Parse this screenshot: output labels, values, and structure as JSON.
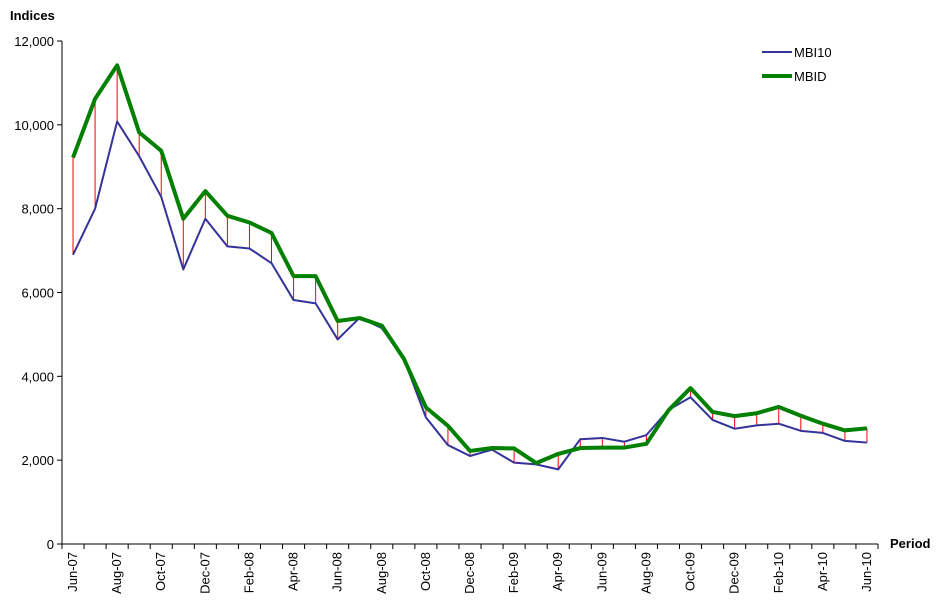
{
  "chart_data": {
    "type": "line",
    "ylabel": "Indices",
    "xlabel": "Period",
    "ylim": [
      0,
      12000
    ],
    "yticks": [
      0,
      2000,
      4000,
      6000,
      8000,
      10000,
      12000
    ],
    "ytick_labels": [
      "0",
      "2,000",
      "4,000",
      "6,000",
      "8,000",
      "10,000",
      "12,000"
    ],
    "x": [
      "Jun-07",
      "Jul-07",
      "Aug-07",
      "Sep-07",
      "Oct-07",
      "Nov-07",
      "Dec-07",
      "Jan-08",
      "Feb-08",
      "Mar-08",
      "Apr-08",
      "May-08",
      "Jun-08",
      "Jul-08",
      "Aug-08",
      "Sep-08",
      "Oct-08",
      "Nov-08",
      "Dec-08",
      "Jan-09",
      "Feb-09",
      "Mar-09",
      "Apr-09",
      "May-09",
      "Jun-09",
      "Jul-09",
      "Aug-09",
      "Sep-09",
      "Oct-09",
      "Nov-09",
      "Dec-09",
      "Jan-10",
      "Feb-10",
      "Mar-10",
      "Apr-10",
      "May-10",
      "Jun-10"
    ],
    "x_tick_labels": [
      "Jun-07",
      "Aug-07",
      "Oct-07",
      "Dec-07",
      "Feb-08",
      "Apr-08",
      "Jun-08",
      "Aug-08",
      "Oct-08",
      "Dec-08",
      "Feb-09",
      "Apr-09",
      "Jun-09",
      "Aug-09",
      "Oct-09",
      "Dec-09",
      "Feb-10",
      "Apr-10",
      "Jun-10"
    ],
    "series": [
      {
        "name": "MBI10",
        "color": "#333399",
        "values": [
          6900,
          8000,
          10080,
          9250,
          8280,
          6550,
          7760,
          7100,
          7050,
          6700,
          5820,
          5740,
          4880,
          5400,
          5150,
          4420,
          3020,
          2360,
          2100,
          2250,
          1940,
          1900,
          1780,
          2500,
          2530,
          2440,
          2600,
          3200,
          3500,
          2960,
          2750,
          2830,
          2870,
          2700,
          2650,
          2460,
          2420
        ]
      },
      {
        "name": "MBID",
        "color": "#008000",
        "values": [
          9220,
          10620,
          11420,
          9820,
          9380,
          7760,
          8420,
          7830,
          7670,
          7420,
          6390,
          6390,
          5320,
          5390,
          5210,
          4420,
          3260,
          2820,
          2220,
          2290,
          2280,
          1930,
          2150,
          2290,
          2300,
          2300,
          2390,
          3190,
          3720,
          3150,
          3050,
          3120,
          3270,
          3060,
          2870,
          2710,
          2760
        ]
      }
    ],
    "legend_position": "top-right",
    "grid": false,
    "difference_lines_color": "#ff0000"
  }
}
